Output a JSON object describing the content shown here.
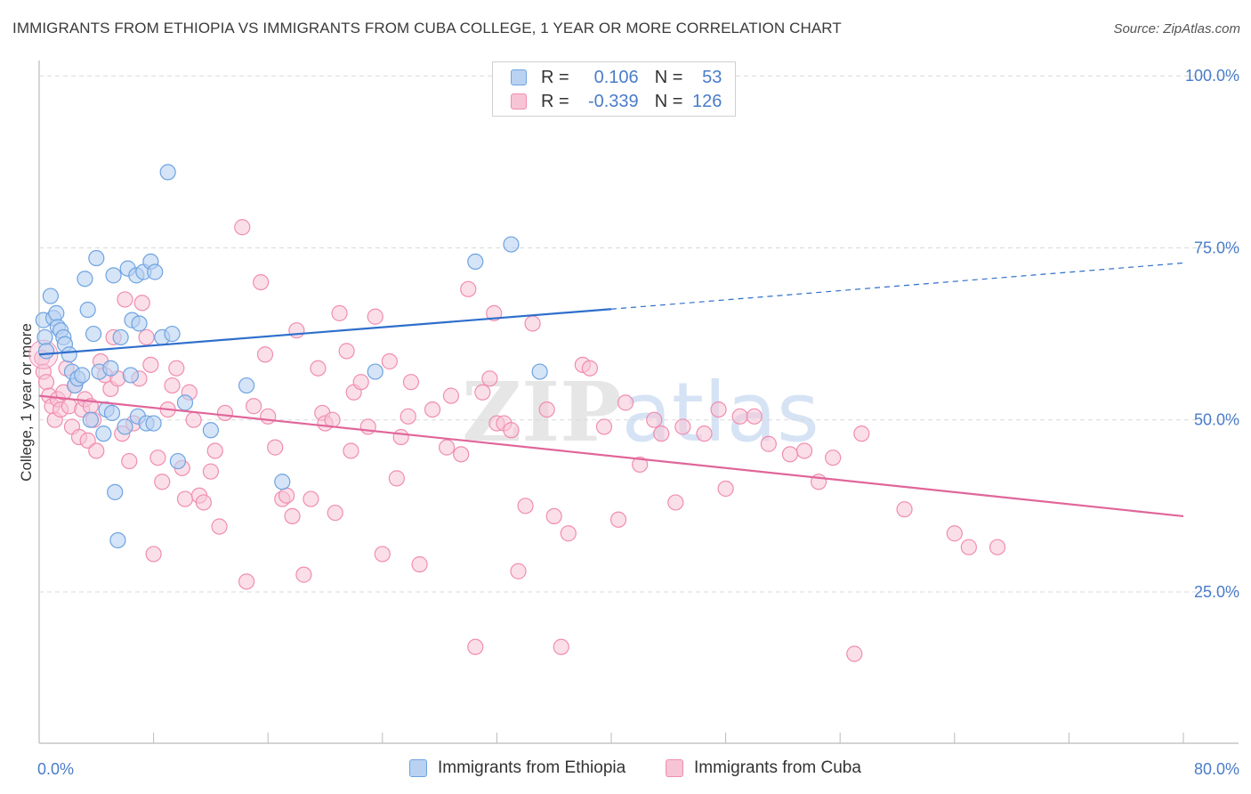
{
  "chart_data": {
    "type": "scatter",
    "title": "IMMIGRANTS FROM ETHIOPIA VS IMMIGRANTS FROM CUBA COLLEGE, 1 YEAR OR MORE CORRELATION CHART",
    "source": "Source: ZipAtlas.com",
    "ylabel": "College, 1 year or more",
    "xlabel": "",
    "xlim": [
      0,
      80
    ],
    "ylim": [
      3,
      103
    ],
    "x_tick_labels": [
      "0.0%",
      "80.0%"
    ],
    "y_ticks": [
      {
        "value": 25,
        "label": "25.0%"
      },
      {
        "value": 50,
        "label": "50.0%"
      },
      {
        "value": 75,
        "label": "75.0%"
      },
      {
        "value": 100,
        "label": "100.0%"
      }
    ],
    "grid": true,
    "watermark": "ZIPatlas",
    "legend": {
      "position": "top-center",
      "entries": [
        {
          "r_label": "R =",
          "r_value": "0.106",
          "n_label": "N =",
          "n_value": "53"
        },
        {
          "r_label": "R =",
          "r_value": "-0.339",
          "n_label": "N =",
          "n_value": "126"
        }
      ]
    },
    "series": [
      {
        "name": "Immigrants from Ethiopia",
        "color": "#6fa3e0",
        "fill": "#b9d2f1",
        "trend": {
          "x0": 0,
          "y0": 59.5,
          "x1": 40,
          "y1": 66.1,
          "dash_to_x": 80,
          "dash_to_y": 72.8,
          "color": "#2f6fcb"
        },
        "points": [
          [
            0.3,
            64.5
          ],
          [
            0.4,
            62
          ],
          [
            0.5,
            60
          ],
          [
            0.8,
            68
          ],
          [
            1,
            64.8
          ],
          [
            1.2,
            65.5
          ],
          [
            1.3,
            63.5
          ],
          [
            1.5,
            63
          ],
          [
            1.7,
            62
          ],
          [
            1.8,
            61
          ],
          [
            2.1,
            59.5
          ],
          [
            2.3,
            57
          ],
          [
            2.5,
            55
          ],
          [
            2.7,
            56
          ],
          [
            3,
            56.5
          ],
          [
            3.2,
            70.5
          ],
          [
            3.4,
            66
          ],
          [
            3.6,
            50
          ],
          [
            3.8,
            62.5
          ],
          [
            4,
            73.5
          ],
          [
            4.2,
            57
          ],
          [
            4.5,
            48
          ],
          [
            4.7,
            51.5
          ],
          [
            5,
            57.5
          ],
          [
            5.1,
            51
          ],
          [
            5.2,
            71
          ],
          [
            5.3,
            39.5
          ],
          [
            5.5,
            32.5
          ],
          [
            5.7,
            62
          ],
          [
            6,
            49
          ],
          [
            6.2,
            72
          ],
          [
            6.4,
            56.5
          ],
          [
            6.5,
            64.5
          ],
          [
            6.8,
            71
          ],
          [
            6.9,
            50.5
          ],
          [
            7,
            64
          ],
          [
            7.3,
            71.5
          ],
          [
            7.5,
            49.5
          ],
          [
            7.8,
            73
          ],
          [
            8,
            49.5
          ],
          [
            8.1,
            71.5
          ],
          [
            8.6,
            62
          ],
          [
            9,
            86
          ],
          [
            9.3,
            62.5
          ],
          [
            9.7,
            44
          ],
          [
            10.2,
            52.5
          ],
          [
            12,
            48.5
          ],
          [
            14.5,
            55
          ],
          [
            17,
            41
          ],
          [
            23.5,
            57
          ],
          [
            30.5,
            73
          ],
          [
            33,
            75.5
          ],
          [
            35,
            57
          ]
        ]
      },
      {
        "name": "Immigrants from Cuba",
        "color": "#f08db0",
        "fill": "#f7c4d6",
        "trend": {
          "x0": 0,
          "y0": 53.5,
          "x1": 80,
          "y1": 36,
          "color": "#e0669a"
        },
        "points": [
          [
            0.2,
            59
          ],
          [
            0.3,
            57
          ],
          [
            0.5,
            55.5
          ],
          [
            0.7,
            53.5
          ],
          [
            0.9,
            52
          ],
          [
            1.1,
            50
          ],
          [
            1.3,
            53
          ],
          [
            1.5,
            51.5
          ],
          [
            1.7,
            54
          ],
          [
            1.9,
            57.5
          ],
          [
            2.1,
            52
          ],
          [
            2.3,
            49
          ],
          [
            2.5,
            55
          ],
          [
            2.8,
            47.5
          ],
          [
            3,
            51.5
          ],
          [
            3.2,
            53
          ],
          [
            3.4,
            47
          ],
          [
            3.6,
            52
          ],
          [
            3.8,
            50
          ],
          [
            4,
            45.5
          ],
          [
            4.3,
            58.5
          ],
          [
            4.6,
            56.5
          ],
          [
            5,
            54.5
          ],
          [
            5.2,
            62
          ],
          [
            5.5,
            56
          ],
          [
            5.8,
            48
          ],
          [
            6,
            67.5
          ],
          [
            6.3,
            44
          ],
          [
            6.6,
            49.5
          ],
          [
            7,
            56
          ],
          [
            7.2,
            67
          ],
          [
            7.5,
            62
          ],
          [
            7.8,
            58
          ],
          [
            8,
            30.5
          ],
          [
            8.3,
            44.5
          ],
          [
            8.6,
            41
          ],
          [
            9,
            51.5
          ],
          [
            9.3,
            55
          ],
          [
            9.6,
            57.5
          ],
          [
            10,
            43
          ],
          [
            10.2,
            38.5
          ],
          [
            10.5,
            54
          ],
          [
            10.8,
            50
          ],
          [
            11.2,
            39
          ],
          [
            11.5,
            38
          ],
          [
            12,
            42.5
          ],
          [
            12.3,
            45.5
          ],
          [
            12.6,
            34.5
          ],
          [
            13,
            51
          ],
          [
            14.2,
            78
          ],
          [
            14.5,
            26.5
          ],
          [
            15,
            52
          ],
          [
            15.5,
            70
          ],
          [
            15.8,
            59.5
          ],
          [
            16,
            50.5
          ],
          [
            16.5,
            46
          ],
          [
            17,
            38.5
          ],
          [
            17.3,
            39
          ],
          [
            17.7,
            36
          ],
          [
            18,
            63
          ],
          [
            18.5,
            27.5
          ],
          [
            19,
            38.5
          ],
          [
            19.5,
            57.5
          ],
          [
            19.8,
            51
          ],
          [
            20,
            49.5
          ],
          [
            20.5,
            50
          ],
          [
            20.7,
            36.5
          ],
          [
            21,
            65.5
          ],
          [
            21.5,
            60
          ],
          [
            21.8,
            45.5
          ],
          [
            22,
            54
          ],
          [
            22.5,
            55.5
          ],
          [
            23,
            49
          ],
          [
            23.5,
            65
          ],
          [
            24,
            30.5
          ],
          [
            24.5,
            58.5
          ],
          [
            25,
            41.5
          ],
          [
            25.3,
            47.5
          ],
          [
            25.8,
            50.5
          ],
          [
            26,
            55.5
          ],
          [
            26.6,
            29
          ],
          [
            27.5,
            51.5
          ],
          [
            28.5,
            46
          ],
          [
            28.8,
            53.5
          ],
          [
            29.5,
            45
          ],
          [
            30,
            69
          ],
          [
            30.5,
            17
          ],
          [
            31,
            54
          ],
          [
            31.5,
            56
          ],
          [
            31.8,
            65.5
          ],
          [
            32,
            49.5
          ],
          [
            32.5,
            49.5
          ],
          [
            33,
            48.5
          ],
          [
            33.5,
            28
          ],
          [
            34,
            37.5
          ],
          [
            34.5,
            64
          ],
          [
            35.5,
            51.5
          ],
          [
            36,
            36
          ],
          [
            36.5,
            17
          ],
          [
            37,
            33.5
          ],
          [
            38,
            58
          ],
          [
            38.5,
            57.5
          ],
          [
            39.5,
            49
          ],
          [
            40.5,
            35.5
          ],
          [
            41,
            52.5
          ],
          [
            42,
            43.5
          ],
          [
            43,
            50
          ],
          [
            43.5,
            48
          ],
          [
            44.5,
            38
          ],
          [
            45,
            49
          ],
          [
            46.5,
            48
          ],
          [
            47.5,
            51.5
          ],
          [
            48,
            40
          ],
          [
            49,
            50.5
          ],
          [
            50,
            50.5
          ],
          [
            51,
            46.5
          ],
          [
            52.5,
            45
          ],
          [
            53.5,
            45.5
          ],
          [
            54.5,
            41
          ],
          [
            55.5,
            44.5
          ],
          [
            57,
            16
          ],
          [
            57.5,
            48
          ],
          [
            60.5,
            37
          ],
          [
            64,
            33.5
          ],
          [
            65,
            31.5
          ],
          [
            67,
            31.5
          ]
        ]
      }
    ]
  },
  "colors": {
    "accent_blue": "#4a7cc9",
    "grid": "#d9d9d9"
  }
}
